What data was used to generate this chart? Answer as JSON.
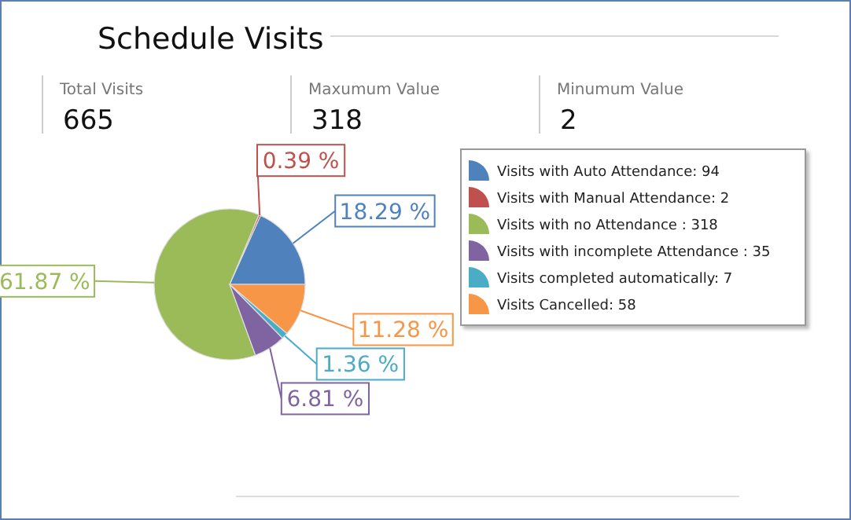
{
  "chart_data": [
    {
      "type": "other",
      "title": "Schedule Visits",
      "categories": [
        "Total Visits",
        "Maxumum Value",
        "Minumum Value"
      ],
      "values": [
        665,
        318,
        2
      ],
      "data_labels": true
    },
    {
      "type": "pie",
      "categories": [
        "Visits with Auto Attendance: 94",
        "Visits with Manual Attendance: 2",
        "Visits with no Attendance : 318",
        "Visits with incomplete Attendance : 35",
        "Visits completed automatically: 7",
        "Visits Cancelled: 58"
      ],
      "values": [
        18.29,
        0.39,
        61.87,
        6.81,
        1.36,
        11.28
      ],
      "value_labels": [
        "18.29 %",
        "0.39 %",
        "61.87 %",
        "6.81 %",
        "1.36 %",
        "11.28 %"
      ],
      "colors": [
        "#4f81bd",
        "#c0504d",
        "#9bbb59",
        "#8064a2",
        "#4bacc6",
        "#f79646"
      ],
      "legend": "right"
    }
  ]
}
